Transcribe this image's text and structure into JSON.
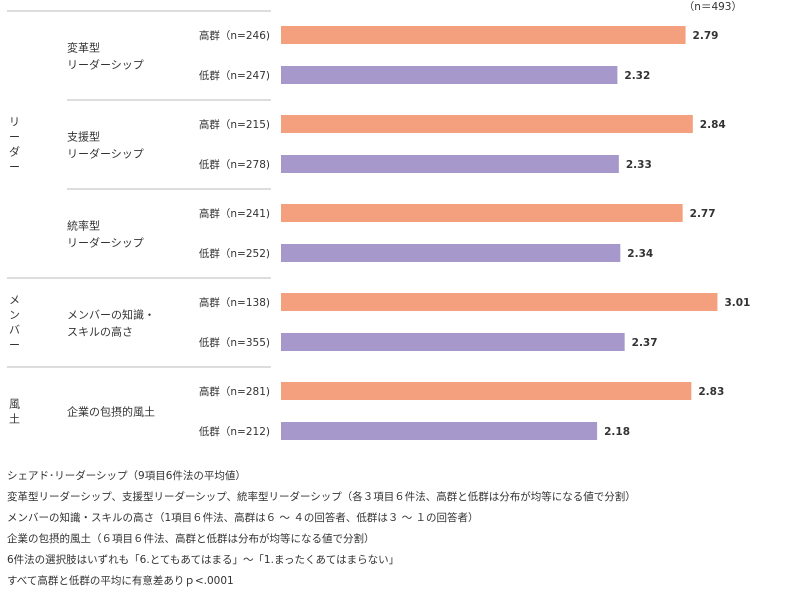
{
  "chart_data": {
    "type": "bar",
    "orientation": "horizontal",
    "sample_note": "（n＝493）",
    "xlim": [
      0,
      3.01
    ],
    "groups": [
      {
        "name": "リーダー",
        "items": [
          {
            "label_lines": [
              "変革型",
              "リーダーシップ"
            ],
            "bars": [
              {
                "series": "高群",
                "label": "高群（n=246)",
                "value": 2.79,
                "value_label": "2.79"
              },
              {
                "series": "低群",
                "label": "低群（n=247)",
                "value": 2.32,
                "value_label": "2.32"
              }
            ]
          },
          {
            "label_lines": [
              "支援型",
              "リーダーシップ"
            ],
            "bars": [
              {
                "series": "高群",
                "label": "高群（n=215)",
                "value": 2.84,
                "value_label": "2.84"
              },
              {
                "series": "低群",
                "label": "低群（n=278)",
                "value": 2.33,
                "value_label": "2.33"
              }
            ]
          },
          {
            "label_lines": [
              "統率型",
              "リーダーシップ"
            ],
            "bars": [
              {
                "series": "高群",
                "label": "高群（n=241)",
                "value": 2.77,
                "value_label": "2.77"
              },
              {
                "series": "低群",
                "label": "低群（n=252)",
                "value": 2.34,
                "value_label": "2.34"
              }
            ]
          }
        ]
      },
      {
        "name": "メンバー",
        "items": [
          {
            "label_lines": [
              "メンバーの知識・",
              "スキルの高さ"
            ],
            "bars": [
              {
                "series": "高群",
                "label": "高群（n=138)",
                "value": 3.01,
                "value_label": "3.01"
              },
              {
                "series": "低群",
                "label": "低群（n=355)",
                "value": 2.37,
                "value_label": "2.37"
              }
            ]
          }
        ]
      },
      {
        "name": "風土",
        "items": [
          {
            "label_lines": [
              "企業の包摂的風土"
            ],
            "bars": [
              {
                "series": "高群",
                "label": "高群（n=281)",
                "value": 2.83,
                "value_label": "2.83"
              },
              {
                "series": "低群",
                "label": "低群（n=212)",
                "value": 2.18,
                "value_label": "2.18"
              }
            ]
          }
        ]
      }
    ],
    "colors": {
      "高群": "#f4a07e",
      "低群": "#a698cb"
    },
    "rule_color": "#bbbbbb"
  },
  "notes": [
    "シェアド･リーダーシップ（9項目6件法の平均値）",
    "変革型リーダーシップ、支援型リーダーシップ、統率型リーダーシップ（各３項目６件法、高群と低群は分布が均等になる値で分割）",
    "メンバーの知識・スキルの高さ（1項目６件法、高群は６ ～ ４の回答者、低群は３ ～ １の回答者）",
    "企業の包摂的風土（６項目６件法、高群と低群は分布が均等になる値で分割）",
    "6件法の選択肢はいずれも「6.とてもあてはまる」～「1.まったくあてはまらない」",
    "すべて高群と低群の平均に有意差ありｐ<.0001"
  ]
}
